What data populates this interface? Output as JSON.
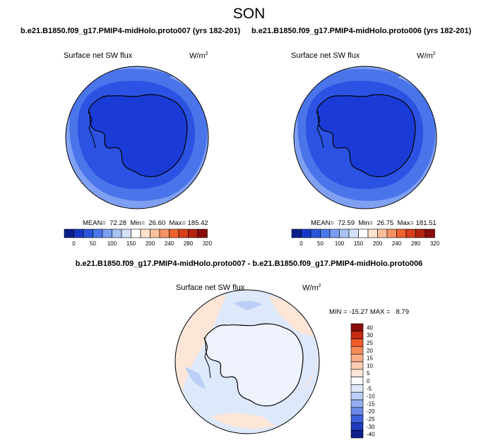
{
  "season": "SON",
  "panels": [
    {
      "case_title": "b.e21.B1850.f09_g17.PMIP4-midHolo.proto007 (yrs 182-201)",
      "variable": "Surface net SW flux",
      "units_base": "W/m",
      "units_exp": "2",
      "stats": "MEAN=  72.28  Min=  26.60  Max= 185.42"
    },
    {
      "case_title": "b.e21.B1850.f09_g17.PMIP4-midHolo.proto006 (yrs 182-201)",
      "variable": "Surface net SW flux",
      "units_base": "W/m",
      "units_exp": "2",
      "stats": "MEAN=  72.59  Min=  26.75  Max= 181.51"
    }
  ],
  "abs_colorbar": {
    "colors": [
      "#0a1e8c",
      "#1638c6",
      "#2a55dc",
      "#4a78ea",
      "#7b9ef2",
      "#a9c2f6",
      "#d3e0fa",
      "#ffffff",
      "#fde2cc",
      "#fbbf9c",
      "#f79264",
      "#ef6232",
      "#d8401a",
      "#b32410",
      "#8a0c0a"
    ],
    "tick_labels": [
      "0",
      "50",
      "100",
      "150",
      "200",
      "240",
      "280",
      "320"
    ]
  },
  "difference": {
    "title": "b.e21.B1850.f09_g17.PMIP4-midHolo.proto007 - b.e21.B1850.f09_g17.PMIP4-midHolo.proto006",
    "variable": "Surface net SW flux",
    "units_base": "W/m",
    "units_exp": "2",
    "stats": "MIN = -15.27 MAX =   8.79",
    "colorbar": {
      "colors": [
        "#8a0c0a",
        "#c92a14",
        "#ef5a2a",
        "#f78a5a",
        "#f9ae88",
        "#fbcbb0",
        "#fde6d8",
        "#ffffff",
        "#dfe8fb",
        "#bccff6",
        "#93adf0",
        "#6b8be8",
        "#3f62dc",
        "#1f3bc0",
        "#0d1e8a"
      ],
      "tick_labels": [
        "40",
        "30",
        "25",
        "20",
        "15",
        "10",
        "5",
        "0",
        "-5",
        "-10",
        "-15",
        "-20",
        "-25",
        "-30",
        "-40"
      ]
    }
  },
  "map_colors": {
    "ice": "#1a3bd6",
    "inner_ocean": "#2b52e2",
    "mid_ocean": "#4a74ea",
    "outer_ocean": "#7e9ff2",
    "coast": "#000000",
    "diff_base": "#dde8fb",
    "diff_warm": "#fde6d8"
  }
}
